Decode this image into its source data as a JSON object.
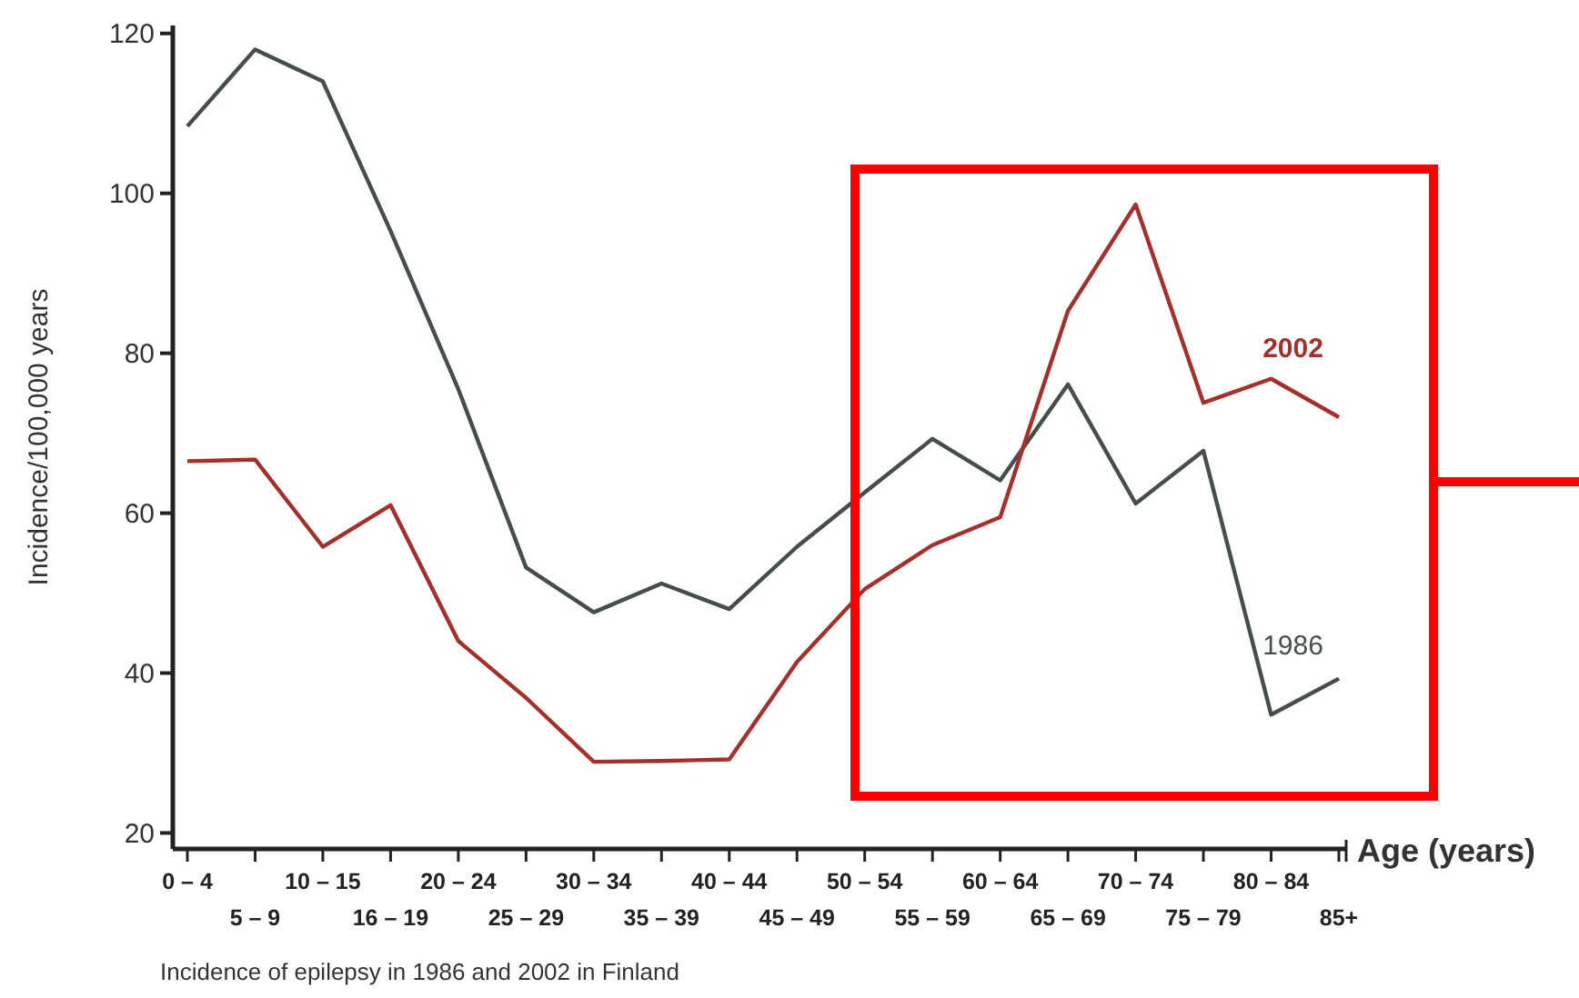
{
  "chart_data": {
    "type": "line",
    "xlabel": "Age (years)",
    "ylabel": "Incidence/100,000 years",
    "categories": [
      "0 – 4",
      "5 – 9",
      "10 – 15",
      "16 – 19",
      "20 – 24",
      "25 – 29",
      "30 – 34",
      "35 – 39",
      "40 – 44",
      "45 – 49",
      "50 – 54",
      "55 – 59",
      "60 – 64",
      "65 – 69",
      "70 – 74",
      "75 – 79",
      "80 – 84",
      "85+"
    ],
    "series": [
      {
        "name": "1986",
        "color": "#454d4d",
        "values": [
          108.4,
          118,
          114,
          95.3,
          75.5,
          53.2,
          47.6,
          51.2,
          48,
          55.8,
          62.6,
          69.3,
          64.1,
          76.1,
          61.2,
          67.8,
          34.8,
          39.3
        ]
      },
      {
        "name": "2002",
        "color": "#a3302a",
        "values": [
          66.5,
          66.7,
          55.8,
          61,
          44,
          36.9,
          28.9,
          29,
          29.2,
          41.4,
          50.5,
          56,
          59.5,
          85.3,
          98.6,
          73.8,
          76.8,
          72
        ]
      }
    ],
    "ylim": [
      18,
      121
    ],
    "yticks": [
      20,
      40,
      60,
      80,
      100,
      120
    ],
    "grid": false,
    "marker": "none",
    "line_style": "solid",
    "annotations": [
      "Incidence of epilepsy in 1986 and 2002 in Finland"
    ]
  }
}
